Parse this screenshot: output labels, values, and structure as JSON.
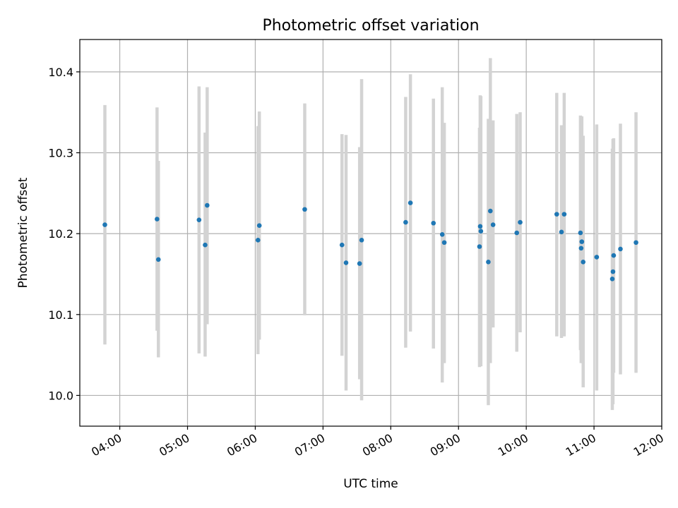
{
  "chart_data": {
    "type": "scatter",
    "title": "Photometric offset variation",
    "xlabel": "UTC time",
    "ylabel": "Photometric offset",
    "grid": true,
    "legend": "none",
    "x_unit": "hours UTC",
    "xlim": [
      3.41,
      12.0
    ],
    "ylim": [
      9.962,
      10.44
    ],
    "xticks": [
      {
        "value": 4,
        "label": "04:00"
      },
      {
        "value": 5,
        "label": "05:00"
      },
      {
        "value": 6,
        "label": "06:00"
      },
      {
        "value": 7,
        "label": "07:00"
      },
      {
        "value": 8,
        "label": "08:00"
      },
      {
        "value": 9,
        "label": "09:00"
      },
      {
        "value": 10,
        "label": "10:00"
      },
      {
        "value": 11,
        "label": "11:00"
      },
      {
        "value": 12,
        "label": "12:00"
      }
    ],
    "yticks": [
      {
        "value": 10.0,
        "label": "10.0"
      },
      {
        "value": 10.1,
        "label": "10.1"
      },
      {
        "value": 10.2,
        "label": "10.2"
      },
      {
        "value": 10.3,
        "label": "10.3"
      },
      {
        "value": 10.4,
        "label": "10.4"
      }
    ],
    "colors": {
      "point": "#1f77b4",
      "errorbar": "#d3d3d3",
      "grid": "#b0b0b0"
    },
    "points": [
      {
        "x": 3.78,
        "y": 10.211,
        "ylow": 10.063,
        "yhigh": 10.359
      },
      {
        "x": 4.55,
        "y": 10.218,
        "ylow": 10.08,
        "yhigh": 10.356
      },
      {
        "x": 4.57,
        "y": 10.168,
        "ylow": 10.047,
        "yhigh": 10.29
      },
      {
        "x": 5.17,
        "y": 10.217,
        "ylow": 10.052,
        "yhigh": 10.382
      },
      {
        "x": 5.26,
        "y": 10.186,
        "ylow": 10.048,
        "yhigh": 10.325
      },
      {
        "x": 5.29,
        "y": 10.235,
        "ylow": 10.088,
        "yhigh": 10.381
      },
      {
        "x": 6.04,
        "y": 10.192,
        "ylow": 10.051,
        "yhigh": 10.333
      },
      {
        "x": 6.06,
        "y": 10.21,
        "ylow": 10.069,
        "yhigh": 10.351
      },
      {
        "x": 6.73,
        "y": 10.23,
        "ylow": 10.099,
        "yhigh": 10.361
      },
      {
        "x": 7.28,
        "y": 10.186,
        "ylow": 10.049,
        "yhigh": 10.323
      },
      {
        "x": 7.34,
        "y": 10.164,
        "ylow": 10.006,
        "yhigh": 10.322
      },
      {
        "x": 7.54,
        "y": 10.163,
        "ylow": 10.02,
        "yhigh": 10.307
      },
      {
        "x": 7.57,
        "y": 10.192,
        "ylow": 9.994,
        "yhigh": 10.391
      },
      {
        "x": 8.22,
        "y": 10.214,
        "ylow": 10.059,
        "yhigh": 10.369
      },
      {
        "x": 8.29,
        "y": 10.238,
        "ylow": 10.079,
        "yhigh": 10.397
      },
      {
        "x": 8.63,
        "y": 10.213,
        "ylow": 10.058,
        "yhigh": 10.367
      },
      {
        "x": 8.76,
        "y": 10.199,
        "ylow": 10.016,
        "yhigh": 10.381
      },
      {
        "x": 8.79,
        "y": 10.189,
        "ylow": 10.04,
        "yhigh": 10.337
      },
      {
        "x": 9.31,
        "y": 10.184,
        "ylow": 10.035,
        "yhigh": 10.331
      },
      {
        "x": 9.32,
        "y": 10.209,
        "ylow": 10.037,
        "yhigh": 10.371
      },
      {
        "x": 9.33,
        "y": 10.203,
        "ylow": 10.036,
        "yhigh": 10.37
      },
      {
        "x": 9.44,
        "y": 10.165,
        "ylow": 9.988,
        "yhigh": 10.342
      },
      {
        "x": 9.47,
        "y": 10.228,
        "ylow": 10.04,
        "yhigh": 10.417
      },
      {
        "x": 9.51,
        "y": 10.211,
        "ylow": 10.084,
        "yhigh": 10.34
      },
      {
        "x": 9.86,
        "y": 10.201,
        "ylow": 10.054,
        "yhigh": 10.348
      },
      {
        "x": 9.91,
        "y": 10.214,
        "ylow": 10.078,
        "yhigh": 10.35
      },
      {
        "x": 10.45,
        "y": 10.224,
        "ylow": 10.073,
        "yhigh": 10.374
      },
      {
        "x": 10.52,
        "y": 10.202,
        "ylow": 10.071,
        "yhigh": 10.334
      },
      {
        "x": 10.56,
        "y": 10.224,
        "ylow": 10.073,
        "yhigh": 10.374
      },
      {
        "x": 10.8,
        "y": 10.201,
        "ylow": 10.056,
        "yhigh": 10.346
      },
      {
        "x": 10.81,
        "y": 10.182,
        "ylow": 10.04,
        "yhigh": 10.325
      },
      {
        "x": 10.82,
        "y": 10.19,
        "ylow": 10.04,
        "yhigh": 10.345
      },
      {
        "x": 10.84,
        "y": 10.165,
        "ylow": 10.01,
        "yhigh": 10.321
      },
      {
        "x": 11.04,
        "y": 10.171,
        "ylow": 10.006,
        "yhigh": 10.335
      },
      {
        "x": 11.27,
        "y": 10.144,
        "ylow": 9.982,
        "yhigh": 10.305
      },
      {
        "x": 11.28,
        "y": 10.153,
        "ylow": 9.989,
        "yhigh": 10.317
      },
      {
        "x": 11.29,
        "y": 10.173,
        "ylow": 10.028,
        "yhigh": 10.318
      },
      {
        "x": 11.39,
        "y": 10.181,
        "ylow": 10.026,
        "yhigh": 10.336
      },
      {
        "x": 11.62,
        "y": 10.189,
        "ylow": 10.028,
        "yhigh": 10.35
      }
    ]
  }
}
